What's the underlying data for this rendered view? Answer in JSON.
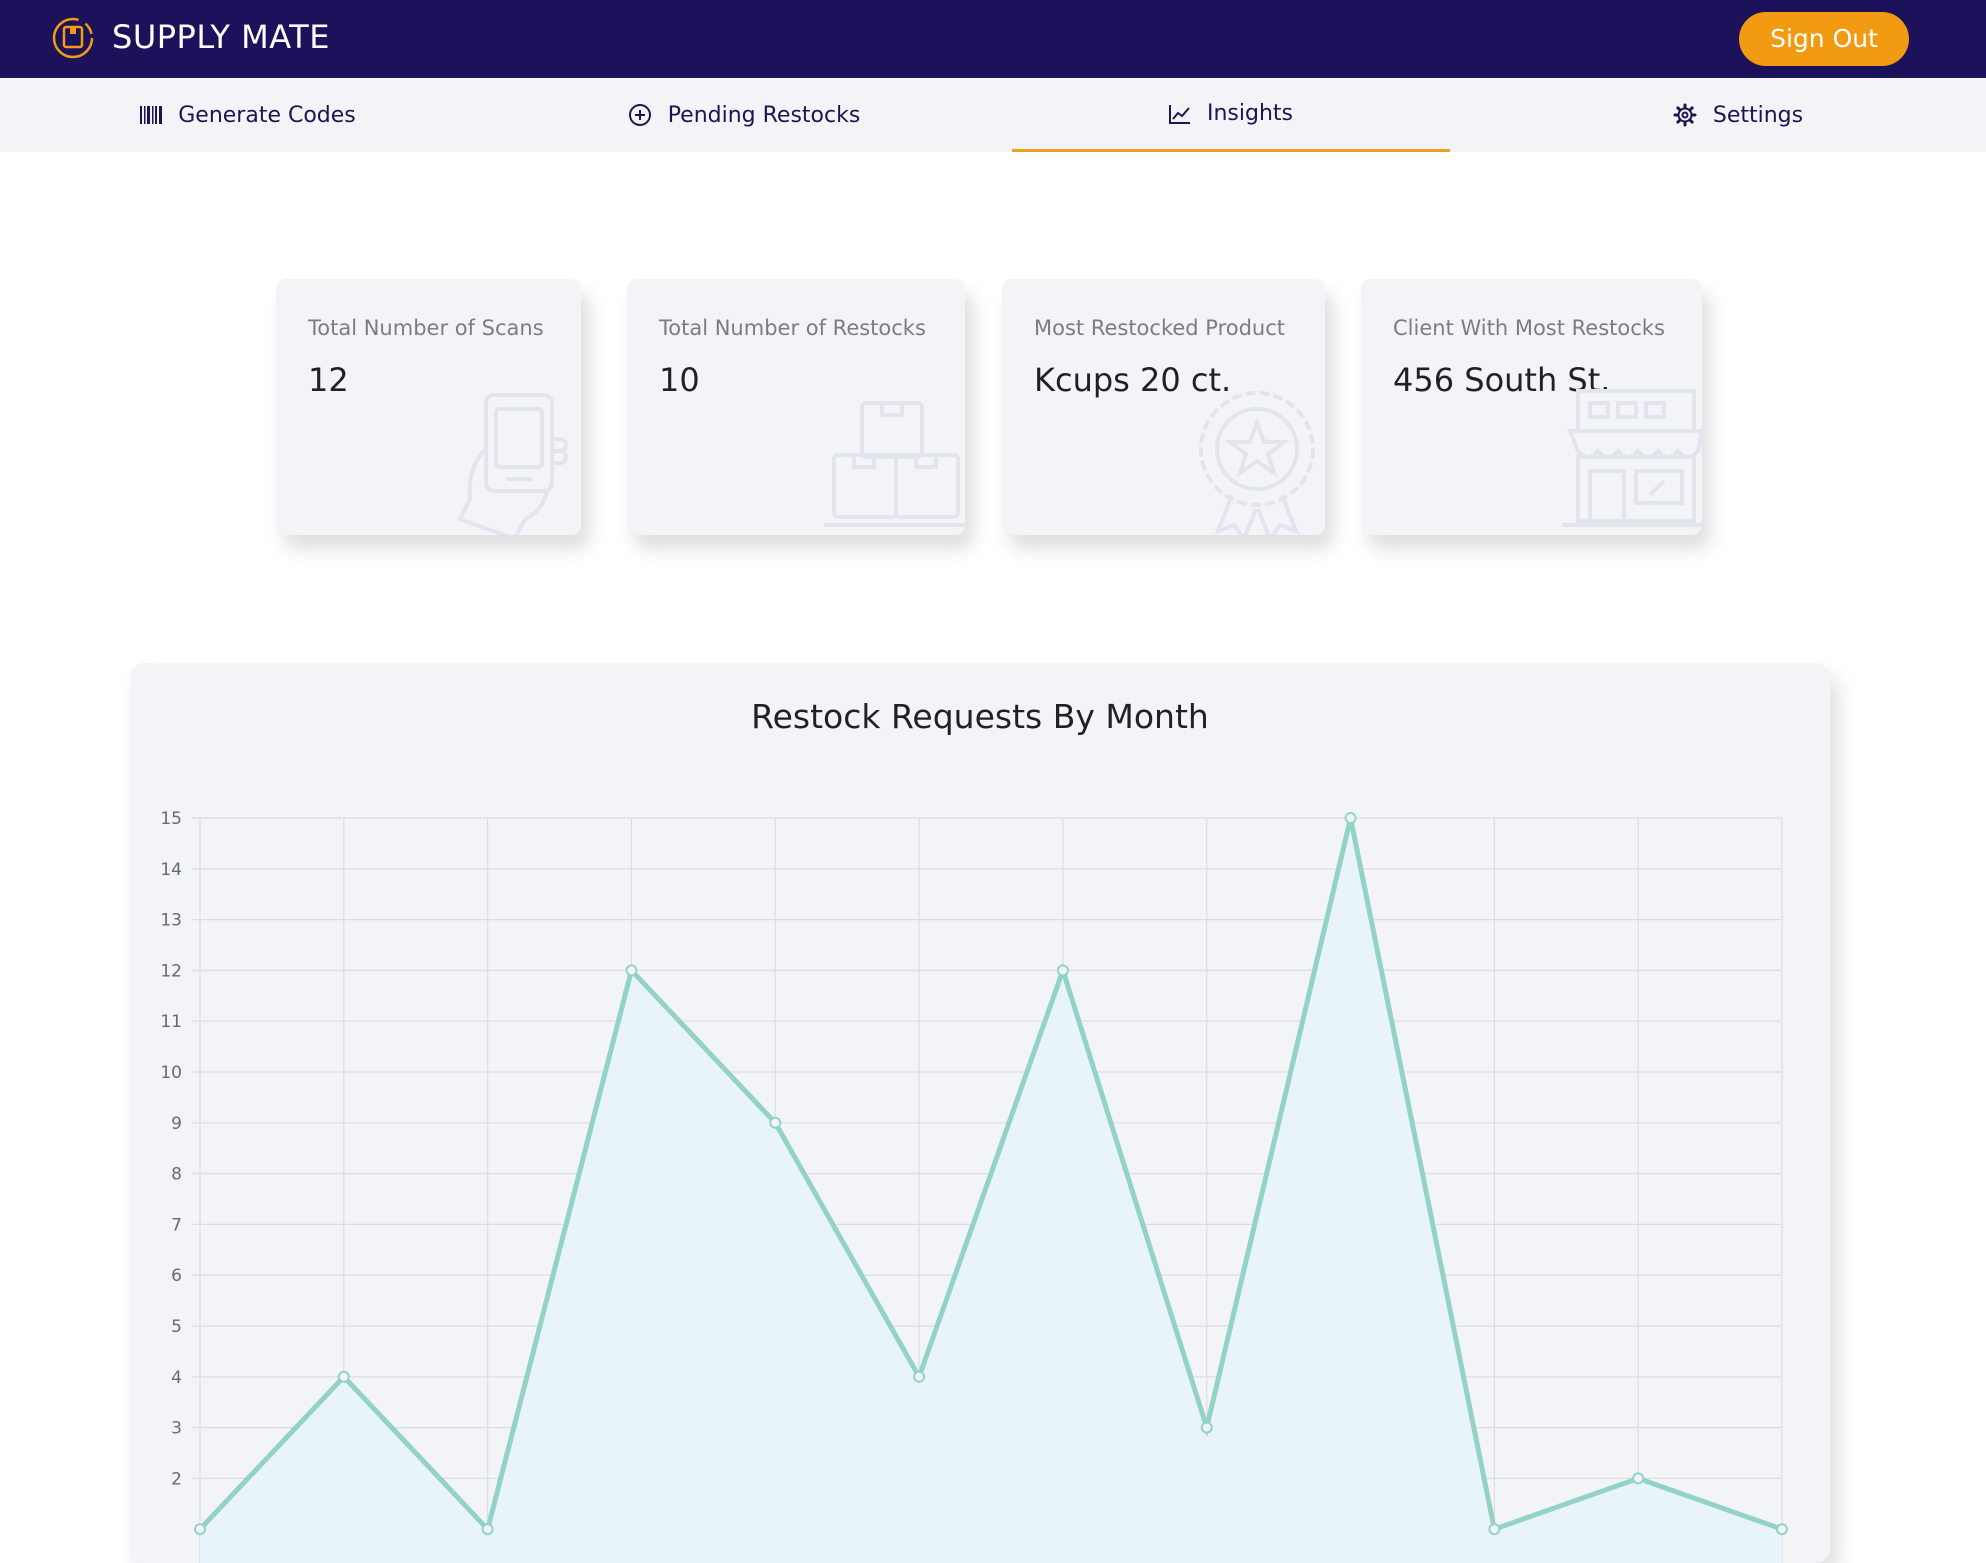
{
  "app": {
    "brand": "SUPPLY MATE",
    "logo_icon": "logo-icon",
    "sign_out_label": "Sign Out",
    "colors": {
      "header_bg": "#1c125c",
      "accent": "#f29b12",
      "chart_line": "#93d3c7",
      "chart_fill": "#e8f4f9"
    }
  },
  "tabs": [
    {
      "label": "Generate Codes",
      "icon": "barcode-icon",
      "active": false
    },
    {
      "label": "Pending Restocks",
      "icon": "plus-circle-icon",
      "active": false
    },
    {
      "label": "Insights",
      "icon": "line-chart-icon",
      "active": true
    },
    {
      "label": "Settings",
      "icon": "gear-icon",
      "active": false
    }
  ],
  "stats": [
    {
      "label": "Total Number of Scans",
      "value": "12",
      "icon": "phone-scan-icon"
    },
    {
      "label": "Total Number of Restocks",
      "value": "10",
      "icon": "boxes-icon"
    },
    {
      "label": "Most Restocked Product",
      "value": "Kcups 20 ct.",
      "icon": "award-badge-icon"
    },
    {
      "label": "Client With Most Restocks",
      "value": "456 South St.",
      "icon": "storefront-icon"
    }
  ],
  "chart_data": {
    "type": "area",
    "title": "Restock Requests By Month",
    "xlabel": "",
    "ylabel": "",
    "ylim": [
      0,
      15
    ],
    "yticks": [
      2,
      3,
      4,
      5,
      6,
      7,
      8,
      9,
      10,
      11,
      12,
      13,
      14,
      15
    ],
    "grid": true,
    "legend": "none",
    "series": [
      {
        "values": [
          1,
          4,
          1,
          12,
          9,
          4,
          12,
          3,
          15,
          1,
          2,
          1
        ]
      }
    ]
  }
}
